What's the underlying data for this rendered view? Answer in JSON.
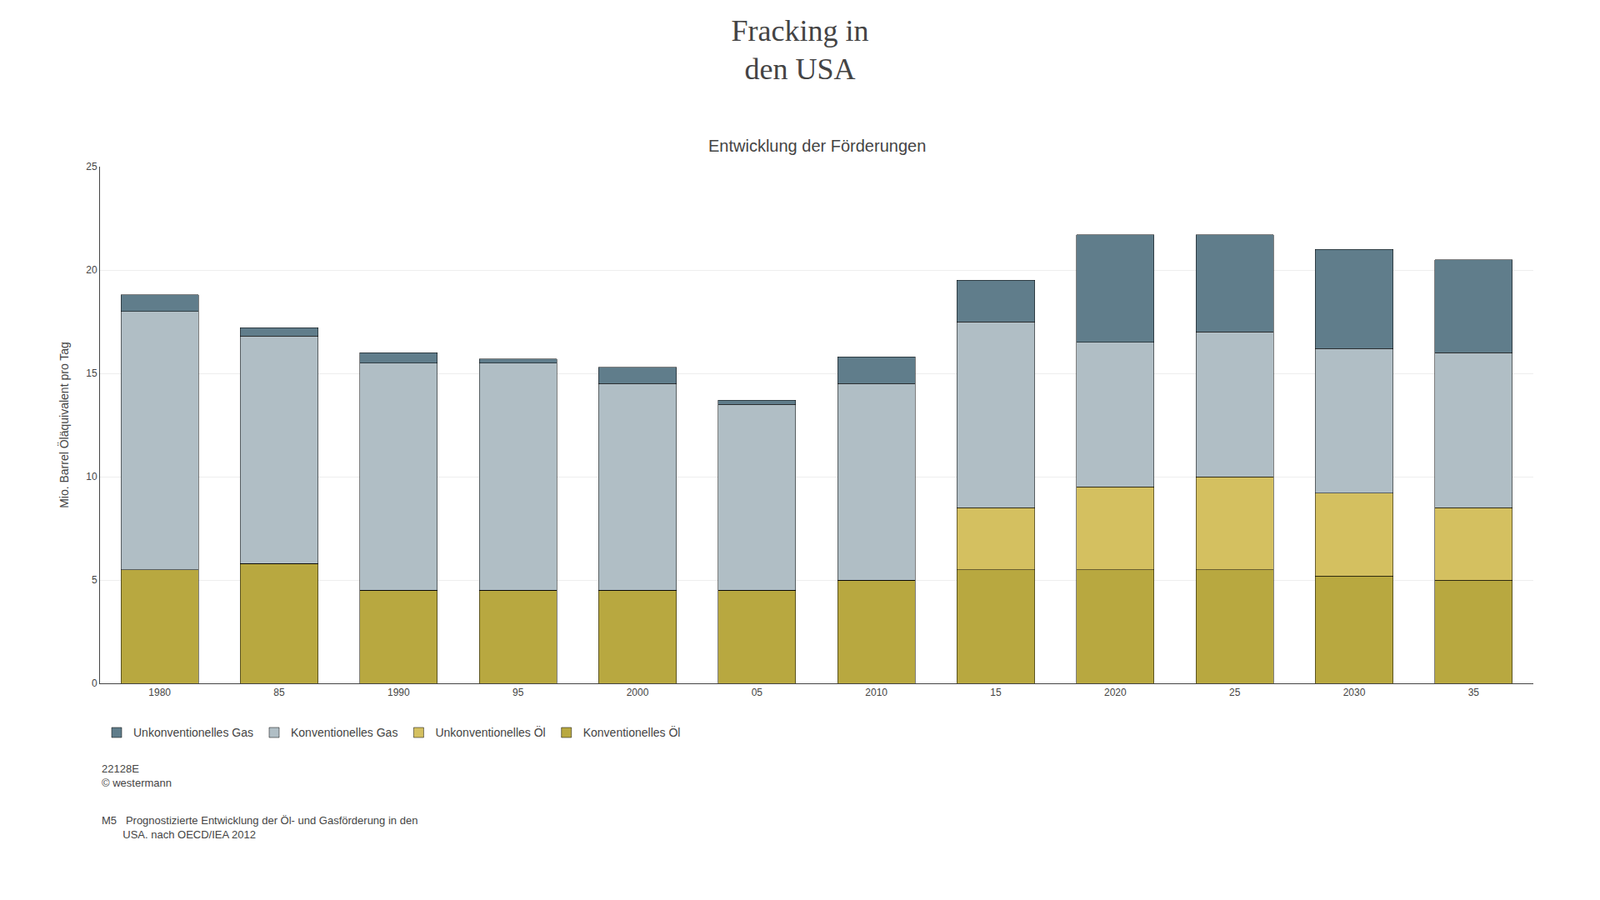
{
  "chart_data": {
    "type": "bar",
    "title": "Fracking in\nden USA",
    "subtitle": "Entwicklung der Förderungen",
    "ylabel": "Mio. Barrel Öläquivalent pro Tag",
    "categories": [
      "1980",
      "85",
      "1990",
      "95",
      "2000",
      "05",
      "2010",
      "15",
      "2020",
      "25",
      "2030",
      "35"
    ],
    "series": [
      {
        "name": "Konventionelles Öl",
        "color": "#b8a840",
        "values": [
          5.5,
          5.8,
          4.5,
          4.5,
          4.5,
          4.5,
          5.0,
          5.5,
          5.5,
          5.5,
          5.2,
          5.0
        ]
      },
      {
        "name": "Unkonventionelles Öl",
        "color": "#d4c060",
        "values": [
          0.0,
          0.0,
          0.0,
          0.0,
          0.0,
          0.0,
          0.0,
          3.0,
          4.0,
          4.5,
          4.0,
          3.5
        ]
      },
      {
        "name": "Konventionelles Gas",
        "color": "#b0bec5",
        "values": [
          12.5,
          11.0,
          11.0,
          11.0,
          10.0,
          9.0,
          9.5,
          9.0,
          7.0,
          7.0,
          7.0,
          7.5
        ]
      },
      {
        "name": "Unkonventionelles Gas",
        "color": "#607d8b",
        "values": [
          0.8,
          0.4,
          0.5,
          0.2,
          0.8,
          0.2,
          1.3,
          2.0,
          5.2,
          4.7,
          4.8,
          4.5
        ]
      }
    ],
    "ylim": [
      0,
      25
    ],
    "yticks": [
      0,
      5,
      10,
      15,
      20,
      25
    ],
    "stacked": true,
    "grid": true,
    "legend": "bottom",
    "annotations": [
      "22128E\n© westermann",
      "M5   Prognostizierte Entwicklung der Öl- und Gasförderung in den\n       USA. nach OECD/IEA 2012"
    ]
  }
}
